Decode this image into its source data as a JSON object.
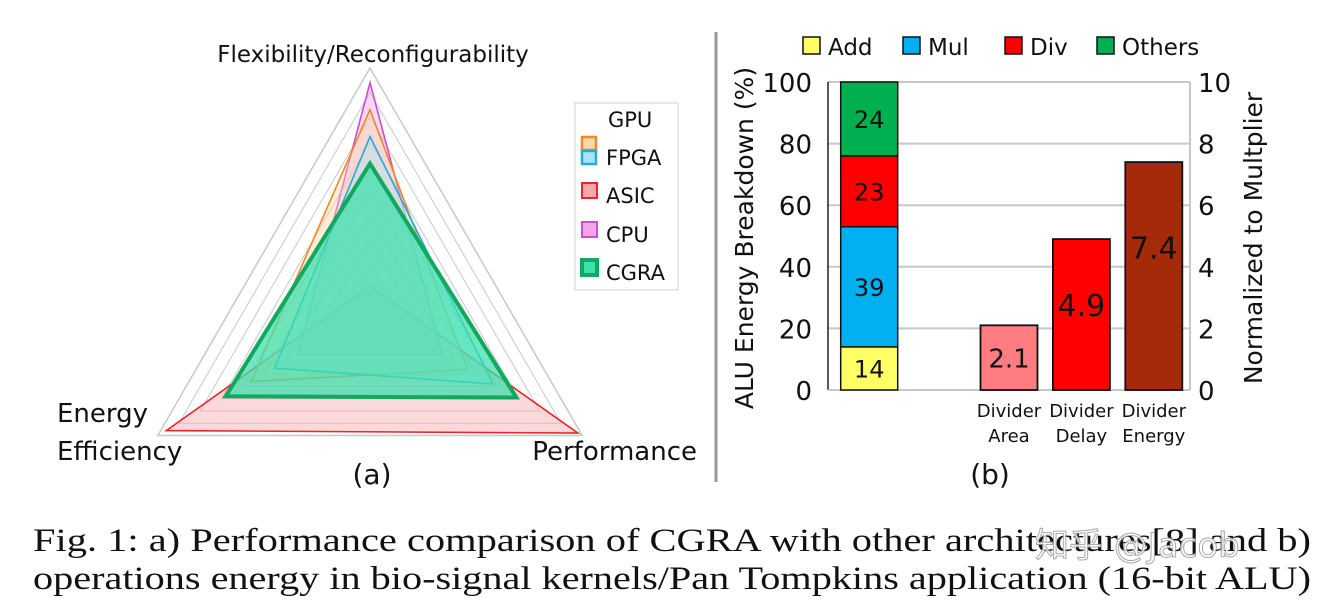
{
  "chart_data": [
    {
      "type": "radar",
      "panel_label": "(a)",
      "axes": [
        "Flexibility/Reconfigurability",
        "Performance",
        "Energy Efficiency"
      ],
      "axis_label_lines": {
        "energy_1": "Energy",
        "energy_2": "Efficiency"
      },
      "range": [
        0,
        10
      ],
      "grid": true,
      "legend_placement": "right",
      "series": [
        {
          "name": "ASIC",
          "values": [
            1.1,
            9.8,
            9.6
          ],
          "color": "#e8262b",
          "fill": "#f7a8ad"
        },
        {
          "name": "CPU",
          "values": [
            9.4,
            3.4,
            3.4
          ],
          "color": "#c84fd0",
          "fill": "#f2a7e8"
        },
        {
          "name": "GPU",
          "values": [
            8.3,
            4.6,
            5.6
          ],
          "color": "#e98a2b",
          "fill": "#f8d7a8"
        },
        {
          "name": "FPGA",
          "values": [
            7.2,
            5.8,
            4.5
          ],
          "color": "#2aa8d8",
          "fill": "#a8e4f2"
        },
        {
          "name": "CGRA",
          "values": [
            6.1,
            6.9,
            6.8
          ],
          "color": "#12a860",
          "fill": "#3fe0ad"
        }
      ],
      "legend": [
        "GPU",
        "FPGA",
        "ASIC",
        "CPU",
        "CGRA"
      ]
    },
    {
      "type": "bar",
      "panel_label": "(b)",
      "legend_placement": "top",
      "legend": [
        {
          "name": "Add",
          "color": "#ffff66"
        },
        {
          "name": "Mul",
          "color": "#00b0f0"
        },
        {
          "name": "Div",
          "color": "#ff0000"
        },
        {
          "name": "Others",
          "color": "#00b050"
        }
      ],
      "stacked_bar": {
        "category": "",
        "axis": "left",
        "segments": [
          {
            "name": "Add",
            "value": 14,
            "color": "#ffff66"
          },
          {
            "name": "Mul",
            "value": 39,
            "color": "#00b0f0"
          },
          {
            "name": "Div",
            "value": 23,
            "color": "#ff0000"
          },
          {
            "name": "Others",
            "value": 24,
            "color": "#00b050"
          }
        ]
      },
      "bars": {
        "axis": "right",
        "categories": [
          [
            "Divider",
            "Area"
          ],
          [
            "Divider",
            "Delay"
          ],
          [
            "Divider",
            "Energy"
          ]
        ],
        "values": [
          2.1,
          4.9,
          7.4
        ],
        "labels": [
          "2.1",
          "4.9",
          "7.4"
        ],
        "colors": [
          "#ff7c80",
          "#ff0000",
          "#a52a0a"
        ]
      },
      "ylabel_left": "ALU Energy Breakdown (%)",
      "ylabel_right": "Normalized to Multplier",
      "ylim_left": [
        0,
        100
      ],
      "yticks_left": [
        "0",
        "20",
        "40",
        "60",
        "80",
        "100"
      ],
      "ylim_right": [
        0,
        10
      ],
      "yticks_right": [
        "0",
        "2",
        "4",
        "6",
        "8",
        "10"
      ],
      "grid": true
    }
  ],
  "caption": {
    "line1": "Fig. 1: a) Performance comparison of CGRA with other architectures[8] and b)",
    "line2": "operations energy in bio-signal kernels/Pan Tompkins application (16-bit ALU)"
  },
  "watermark": "知乎 @Jacob",
  "colors": {
    "divider": "#999999",
    "grid": "#c8c8c8"
  }
}
